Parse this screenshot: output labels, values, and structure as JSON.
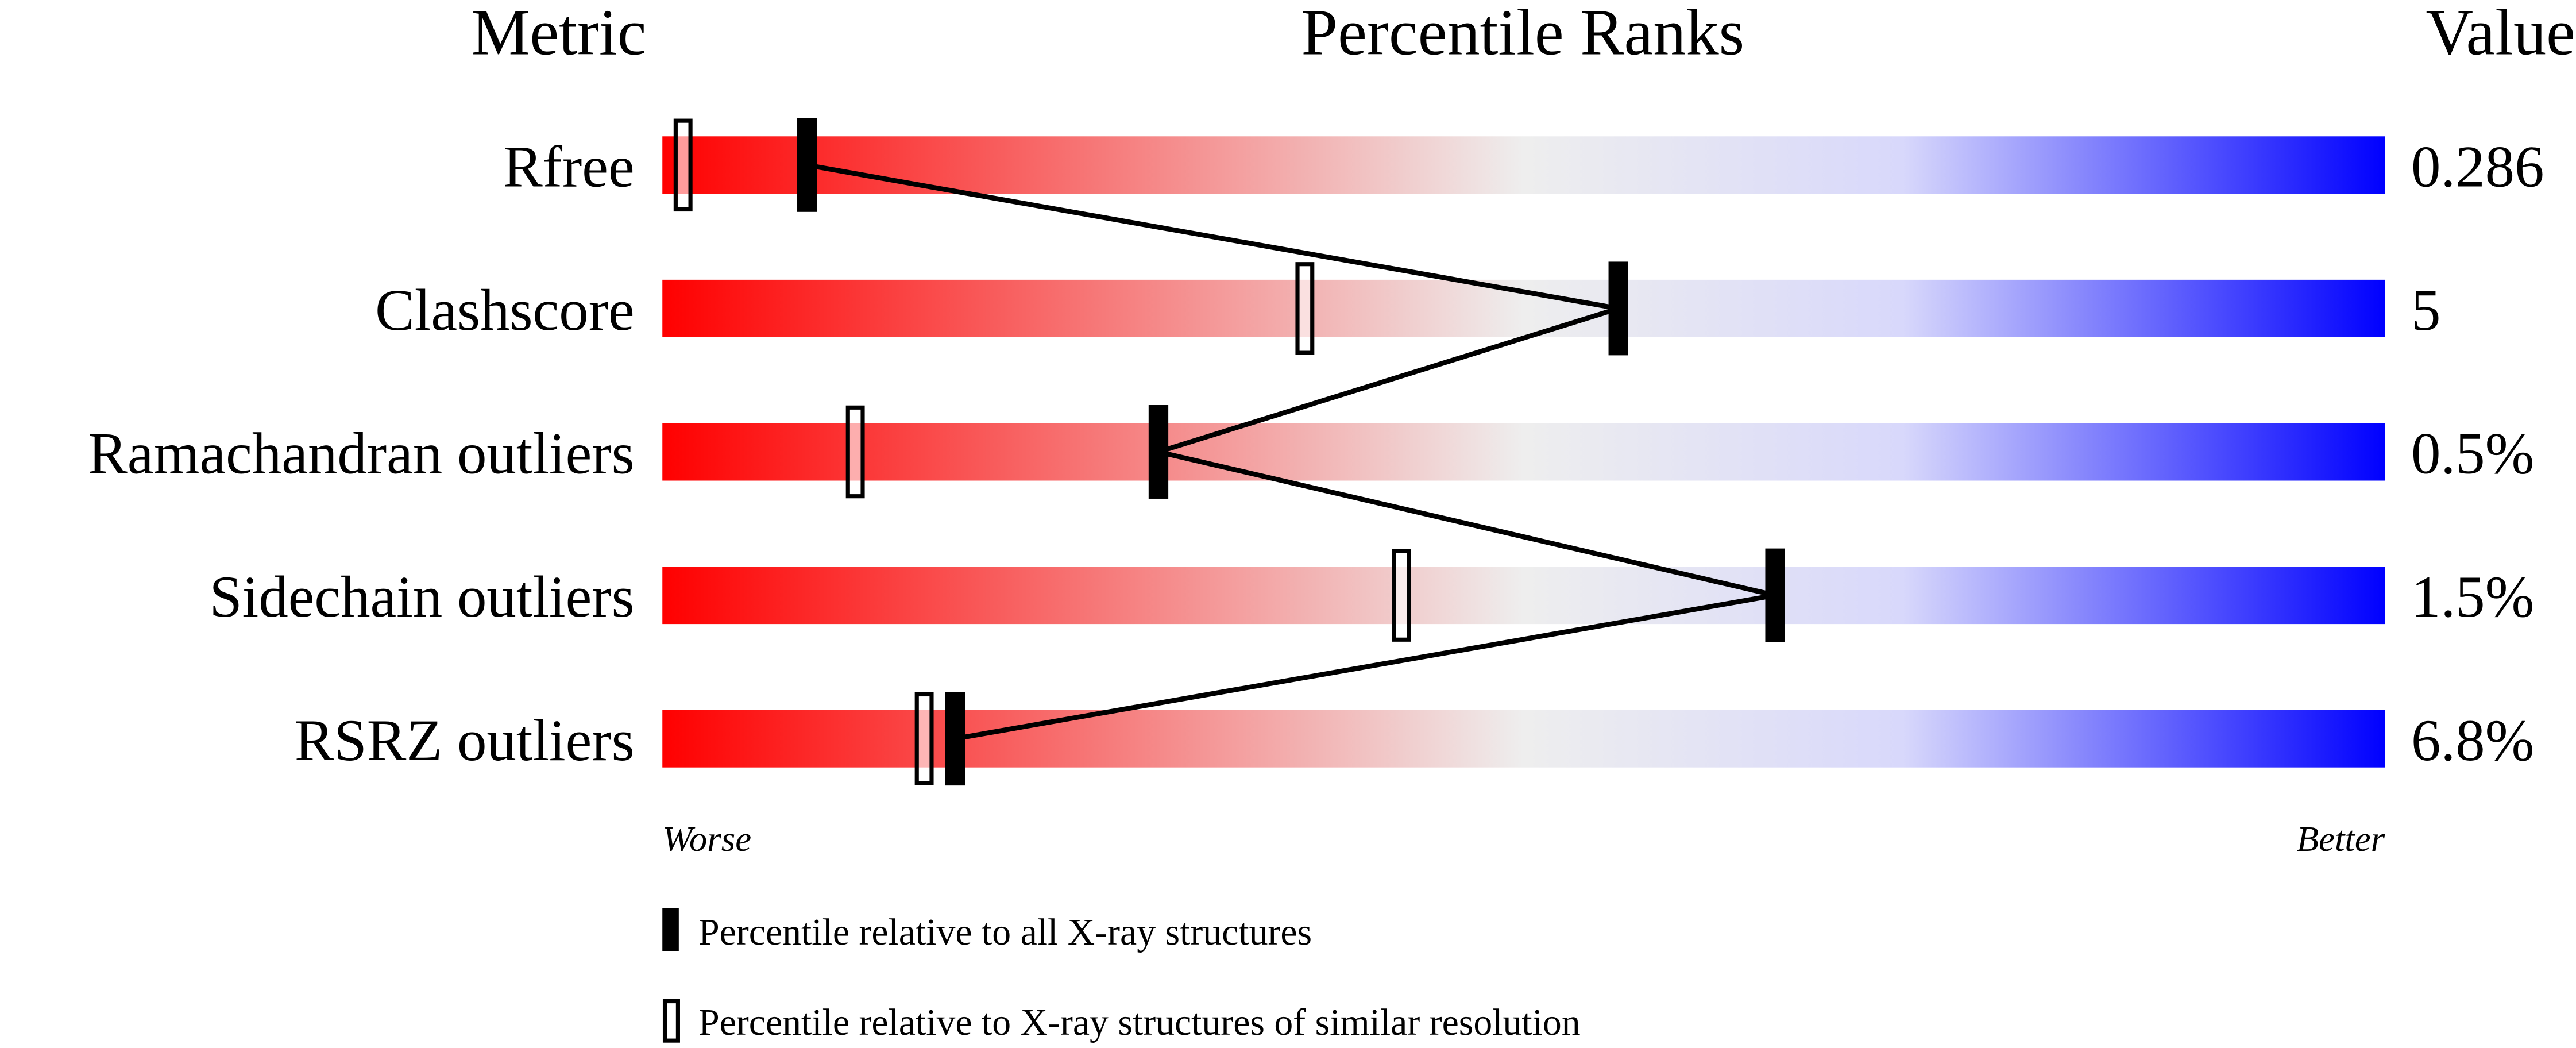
{
  "chart_data": {
    "type": "percentile-slider",
    "headers": {
      "metric": "Metric",
      "ranks": "Percentile Ranks",
      "value": "Value"
    },
    "xlim": [
      0,
      100
    ],
    "axis_labels": {
      "left": "Worse",
      "right": "Better"
    },
    "gradient_colors": [
      "#ff0000",
      "#eeeeee",
      "#0000ff"
    ],
    "rows": [
      {
        "metric": "Rfree",
        "value": "0.286",
        "percentile_all": 8.4,
        "percentile_similar": 1.2
      },
      {
        "metric": "Clashscore",
        "value": "5",
        "percentile_all": 55.5,
        "percentile_similar": 37.3
      },
      {
        "metric": "Ramachandran outliers",
        "value": "0.5%",
        "percentile_all": 28.8,
        "percentile_similar": 11.2
      },
      {
        "metric": "Sidechain outliers",
        "value": "1.5%",
        "percentile_all": 64.6,
        "percentile_similar": 42.9
      },
      {
        "metric": "RSRZ outliers",
        "value": "6.8%",
        "percentile_all": 17.0,
        "percentile_similar": 15.2
      }
    ],
    "legend": [
      {
        "marker": "filled",
        "label": "Percentile relative to all X-ray structures"
      },
      {
        "marker": "open",
        "label": "Percentile relative to X-ray structures of similar resolution"
      }
    ]
  }
}
